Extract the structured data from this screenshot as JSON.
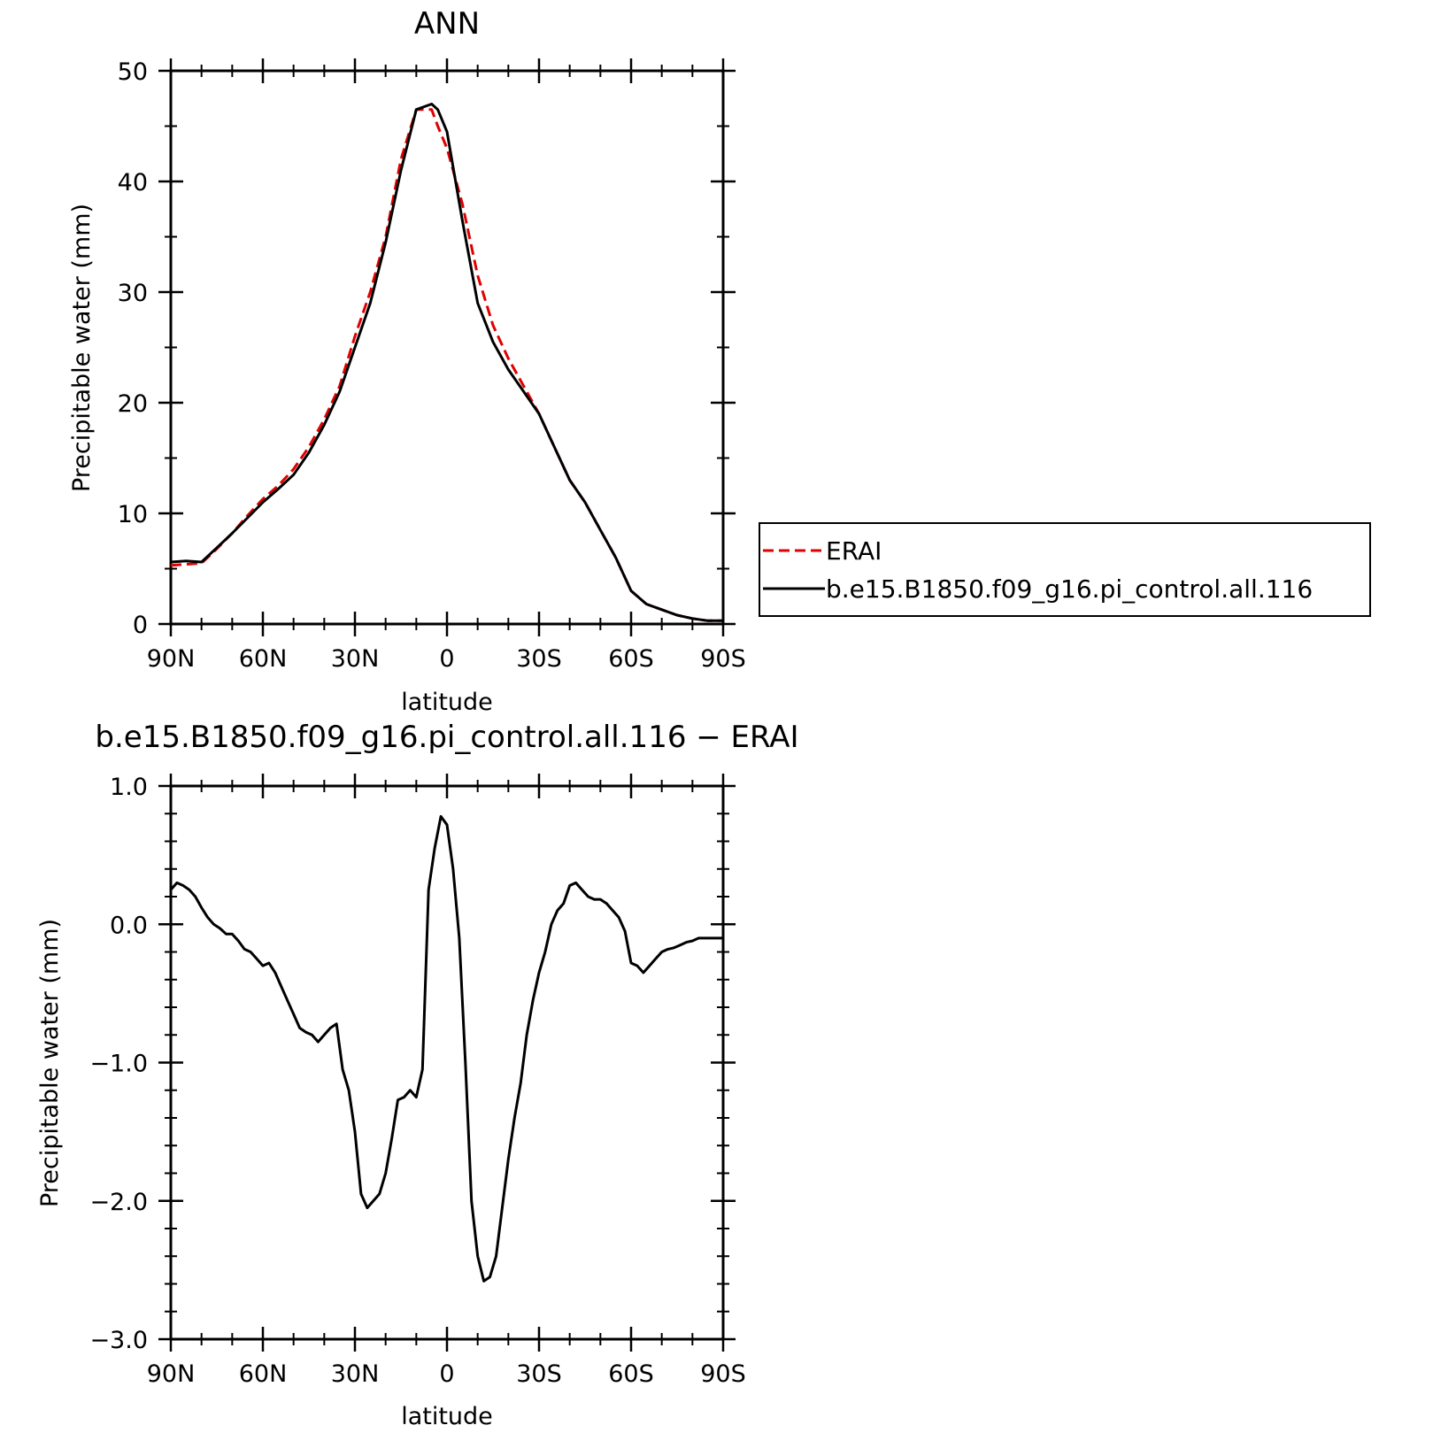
{
  "chart_data": [
    {
      "type": "line",
      "title": "ANN",
      "xlabel": "latitude",
      "ylabel": "Precipitable water (mm)",
      "xlim": [
        90,
        -90
      ],
      "ylim": [
        0,
        50
      ],
      "xticks": [
        90,
        60,
        30,
        0,
        -30,
        -60,
        -90
      ],
      "xtick_labels": [
        "90N",
        "60N",
        "30N",
        "0",
        "30S",
        "60S",
        "90S"
      ],
      "yticks": [
        0,
        10,
        20,
        30,
        40,
        50
      ],
      "ytick_labels": [
        "0",
        "10",
        "20",
        "30",
        "40",
        "50"
      ],
      "legend": "right",
      "series": [
        {
          "name": "ERAI",
          "color": "#e00000",
          "dash": true,
          "x": [
            90,
            85,
            80,
            75,
            70,
            65,
            60,
            55,
            50,
            45,
            40,
            35,
            30,
            25,
            20,
            15,
            10,
            5,
            3,
            0,
            -5,
            -10,
            -15,
            -20,
            -25,
            -30,
            -35,
            -40,
            -45,
            -50,
            -55,
            -60,
            -65,
            -70,
            -75,
            -80,
            -85,
            -90
          ],
          "y": [
            5.3,
            5.4,
            5.5,
            6.8,
            8.2,
            9.8,
            11.3,
            12.5,
            14.0,
            16.0,
            18.5,
            21.5,
            26.0,
            30.0,
            35.0,
            42.0,
            46.5,
            46.5,
            45.0,
            43.0,
            38.0,
            31.5,
            27.0,
            24.0,
            21.5,
            19.0,
            16.0,
            13.0,
            11.0,
            8.5,
            6.0,
            3.0,
            1.8,
            1.3,
            0.8,
            0.5,
            0.3,
            0.3
          ]
        },
        {
          "name": "b.e15.B1850.f09_g16.pi_control.all.116",
          "color": "#000000",
          "dash": false,
          "x": [
            90,
            85,
            80,
            75,
            70,
            65,
            60,
            55,
            50,
            45,
            40,
            35,
            30,
            25,
            20,
            15,
            10,
            5,
            3,
            0,
            -5,
            -10,
            -15,
            -20,
            -25,
            -30,
            -35,
            -40,
            -45,
            -50,
            -55,
            -60,
            -65,
            -70,
            -75,
            -80,
            -85,
            -90
          ],
          "y": [
            5.6,
            5.7,
            5.6,
            6.9,
            8.2,
            9.6,
            11.0,
            12.2,
            13.5,
            15.5,
            18.0,
            21.0,
            25.0,
            29.0,
            34.5,
            41.0,
            46.5,
            47.0,
            46.5,
            44.5,
            36.5,
            29.0,
            25.5,
            23.0,
            21.0,
            19.0,
            16.0,
            13.0,
            11.0,
            8.5,
            6.0,
            3.0,
            1.8,
            1.3,
            0.8,
            0.5,
            0.3,
            0.3
          ]
        }
      ]
    },
    {
      "type": "line",
      "title": "b.e15.B1850.f09_g16.pi_control.all.116 − ERAI",
      "xlabel": "latitude",
      "ylabel": "Precipitable water (mm)",
      "xlim": [
        90,
        -90
      ],
      "ylim": [
        -3.0,
        1.0
      ],
      "xticks": [
        90,
        60,
        30,
        0,
        -30,
        -60,
        -90
      ],
      "xtick_labels": [
        "90N",
        "60N",
        "30N",
        "0",
        "30S",
        "60S",
        "90S"
      ],
      "yticks": [
        1.0,
        0.0,
        -1.0,
        -2.0,
        -3.0
      ],
      "ytick_labels": [
        "1.0",
        "0.0",
        "−1.0",
        "−2.0",
        "−3.0"
      ],
      "series": [
        {
          "color": "#000000",
          "dash": false,
          "x": [
            90,
            88,
            86,
            84,
            82,
            80,
            78,
            76,
            74,
            72,
            70,
            68,
            66,
            64,
            62,
            60,
            58,
            56,
            54,
            52,
            50,
            48,
            46,
            44,
            42,
            40,
            38,
            36,
            34,
            32,
            30,
            28,
            26,
            24,
            22,
            20,
            18,
            16,
            14,
            12,
            10,
            8,
            6,
            4,
            2,
            0,
            -2,
            -4,
            -6,
            -8,
            -10,
            -12,
            -14,
            -16,
            -18,
            -20,
            -22,
            -24,
            -26,
            -28,
            -30,
            -32,
            -34,
            -36,
            -38,
            -40,
            -42,
            -44,
            -46,
            -48,
            -50,
            -52,
            -54,
            -56,
            -58,
            -60,
            -62,
            -64,
            -66,
            -68,
            -70,
            -72,
            -74,
            -76,
            -78,
            -80,
            -82,
            -84,
            -86,
            -88,
            -90
          ],
          "y": [
            0.25,
            0.3,
            0.28,
            0.25,
            0.2,
            0.12,
            0.05,
            0.0,
            -0.03,
            -0.07,
            -0.07,
            -0.12,
            -0.18,
            -0.2,
            -0.25,
            -0.3,
            -0.28,
            -0.35,
            -0.45,
            -0.55,
            -0.65,
            -0.75,
            -0.78,
            -0.8,
            -0.85,
            -0.8,
            -0.75,
            -0.72,
            -1.05,
            -1.2,
            -1.5,
            -1.95,
            -2.05,
            -2.0,
            -1.95,
            -1.8,
            -1.55,
            -1.27,
            -1.25,
            -1.2,
            -1.25,
            -1.05,
            0.25,
            0.55,
            0.78,
            0.72,
            0.4,
            -0.1,
            -1.0,
            -2.0,
            -2.4,
            -2.58,
            -2.55,
            -2.4,
            -2.05,
            -1.7,
            -1.4,
            -1.15,
            -0.8,
            -0.55,
            -0.35,
            -0.2,
            0.0,
            0.1,
            0.15,
            0.28,
            0.3,
            0.25,
            0.2,
            0.18,
            0.18,
            0.15,
            0.1,
            0.05,
            -0.05,
            -0.28,
            -0.3,
            -0.35,
            -0.3,
            -0.25,
            -0.2,
            -0.18,
            -0.17,
            -0.15,
            -0.13,
            -0.12,
            -0.1,
            -0.1,
            -0.1,
            -0.1,
            -0.1
          ]
        }
      ]
    }
  ]
}
